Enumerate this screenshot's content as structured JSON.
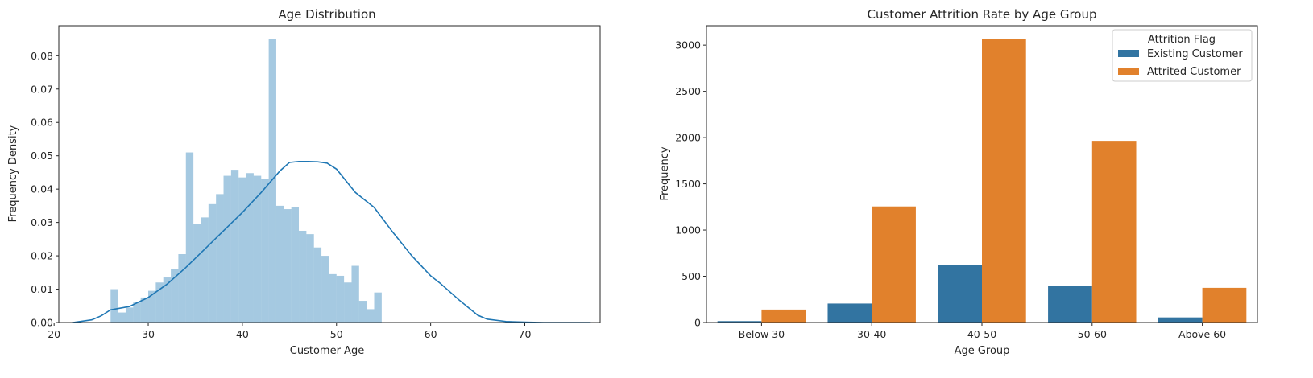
{
  "chart_data": [
    {
      "type": "histogram",
      "title": "Age Distribution",
      "xlabel": "Customer Age",
      "ylabel": "Frequency Density",
      "xlim": [
        20.5,
        78
      ],
      "ylim": [
        0,
        0.089
      ],
      "xticks": [
        20,
        30,
        40,
        50,
        60,
        70
      ],
      "yticks": [
        0.0,
        0.01,
        0.02,
        0.03,
        0.04,
        0.05,
        0.06,
        0.07,
        0.08
      ],
      "ytick_labels": [
        "0.00",
        "0.01",
        "0.02",
        "0.03",
        "0.04",
        "0.05",
        "0.06",
        "0.07",
        "0.08"
      ],
      "bin_start": 26,
      "bin_width": 0.8,
      "bin_values": [
        0.01,
        0.003,
        0.0045,
        0.006,
        0.0075,
        0.0095,
        0.012,
        0.0135,
        0.016,
        0.0205,
        0.051,
        0.0295,
        0.0315,
        0.0355,
        0.0385,
        0.044,
        0.0458,
        0.0435,
        0.0448,
        0.044,
        0.043,
        0.085,
        0.035,
        0.034,
        0.0345,
        0.0275,
        0.0265,
        0.0225,
        0.02,
        0.0145,
        0.014,
        0.012,
        0.017,
        0.0065,
        0.004,
        0.009
      ],
      "kde": {
        "x": [
          22,
          24,
          25,
          26,
          27,
          28,
          30,
          32,
          34,
          36,
          38,
          40,
          42,
          44,
          45,
          46,
          47,
          48,
          49,
          50,
          52,
          54,
          56,
          58,
          60,
          61,
          62,
          63,
          64,
          65,
          66,
          68,
          70,
          72,
          74,
          77
        ],
        "y": [
          0.0,
          0.0008,
          0.002,
          0.0038,
          0.0043,
          0.0048,
          0.0075,
          0.0115,
          0.0165,
          0.022,
          0.0275,
          0.033,
          0.039,
          0.0455,
          0.048,
          0.0483,
          0.0483,
          0.0482,
          0.0478,
          0.046,
          0.039,
          0.0345,
          0.027,
          0.02,
          0.014,
          0.0118,
          0.0093,
          0.0068,
          0.0045,
          0.0022,
          0.001,
          0.0003,
          0.0001,
          0.0,
          0.0,
          0.0
        ]
      },
      "color": "#1f77b4"
    },
    {
      "type": "bar",
      "title": "Customer Attrition Rate by Age Group",
      "xlabel": "Age Group",
      "ylabel": "Frequency",
      "categories": [
        "Below 30",
        "30-40",
        "40-50",
        "50-60",
        "Above 60"
      ],
      "ylim": [
        0,
        3210
      ],
      "yticks": [
        0,
        500,
        1000,
        1500,
        2000,
        2500,
        3000
      ],
      "series": [
        {
          "name": "Existing Customer",
          "color": "#3274a1",
          "values": [
            15,
            205,
            620,
            395,
            55
          ]
        },
        {
          "name": "Attrited Customer",
          "color": "#e1812c",
          "values": [
            140,
            1255,
            3065,
            1965,
            375
          ]
        }
      ],
      "legend": {
        "title": "Attrition Flag",
        "placement": "top-right"
      }
    }
  ]
}
